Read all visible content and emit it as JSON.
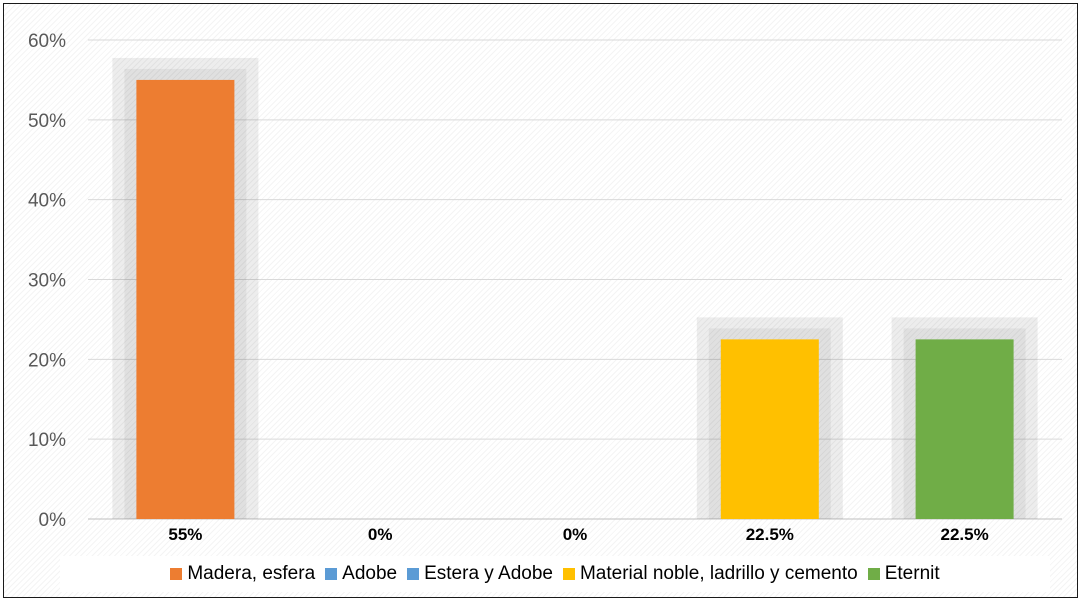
{
  "chart_data": {
    "type": "bar",
    "categories": [
      "Madera, esfera",
      "Adobe",
      "Estera y Adobe",
      "Material noble, ladrillo y cemento",
      "Eternit"
    ],
    "values": [
      55,
      0,
      0,
      22.5,
      22.5
    ],
    "data_labels": [
      "55%",
      "0%",
      "0%",
      "22.5%",
      "22.5%"
    ],
    "colors": [
      "#ED7D31",
      "#5B9BD5",
      "#5B9BD5",
      "#FFC000",
      "#70AD47"
    ],
    "yticks": [
      "0%",
      "10%",
      "20%",
      "30%",
      "40%",
      "50%",
      "60%"
    ],
    "ylim": [
      0,
      60
    ],
    "grid": true,
    "legend_position": "bottom"
  }
}
